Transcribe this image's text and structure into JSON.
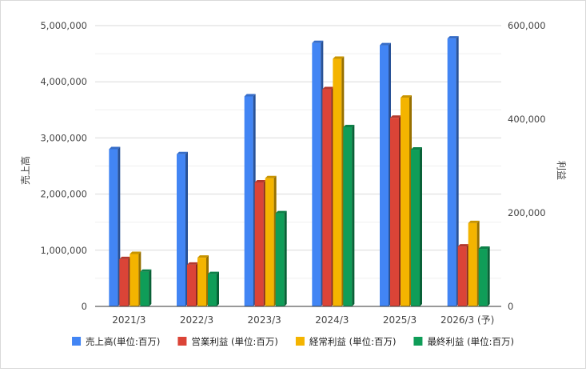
{
  "chart_data": {
    "type": "bar",
    "title": "",
    "categories": [
      "2021/3",
      "2022/3",
      "2023/3",
      "2024/3",
      "2025/3",
      "2026/3 (予)"
    ],
    "ylabel": "売上高",
    "y2label": "利益",
    "ylim": [
      0,
      5000000
    ],
    "y2lim": [
      0,
      600000
    ],
    "yticks": [
      "0",
      "1,000,000",
      "2,000,000",
      "3,000,000",
      "4,000,000",
      "5,000,000"
    ],
    "y2ticks": [
      "0",
      "200,000",
      "400,000",
      "600,000"
    ],
    "grid": true,
    "legend_position": "bottom",
    "series": [
      {
        "name": "売上高(単位:百万)",
        "axis": "left",
        "color": "#4285f4",
        "values": [
          2800000,
          2710000,
          3740000,
          4690000,
          4650000,
          4770000
        ]
      },
      {
        "name": "営業利益 (単位:百万)",
        "axis": "right",
        "color": "#db4437",
        "values": [
          101000,
          89000,
          265000,
          464000,
          403000,
          128000
        ]
      },
      {
        "name": "経常利益 (単位:百万)",
        "axis": "right",
        "color": "#f4b400",
        "values": [
          112000,
          104000,
          274000,
          529000,
          446000,
          178000
        ]
      },
      {
        "name": "最終利益 (単位:百万)",
        "axis": "right",
        "color": "#0f9d58",
        "values": [
          74000,
          69000,
          199000,
          383000,
          335000,
          123000
        ]
      }
    ]
  }
}
